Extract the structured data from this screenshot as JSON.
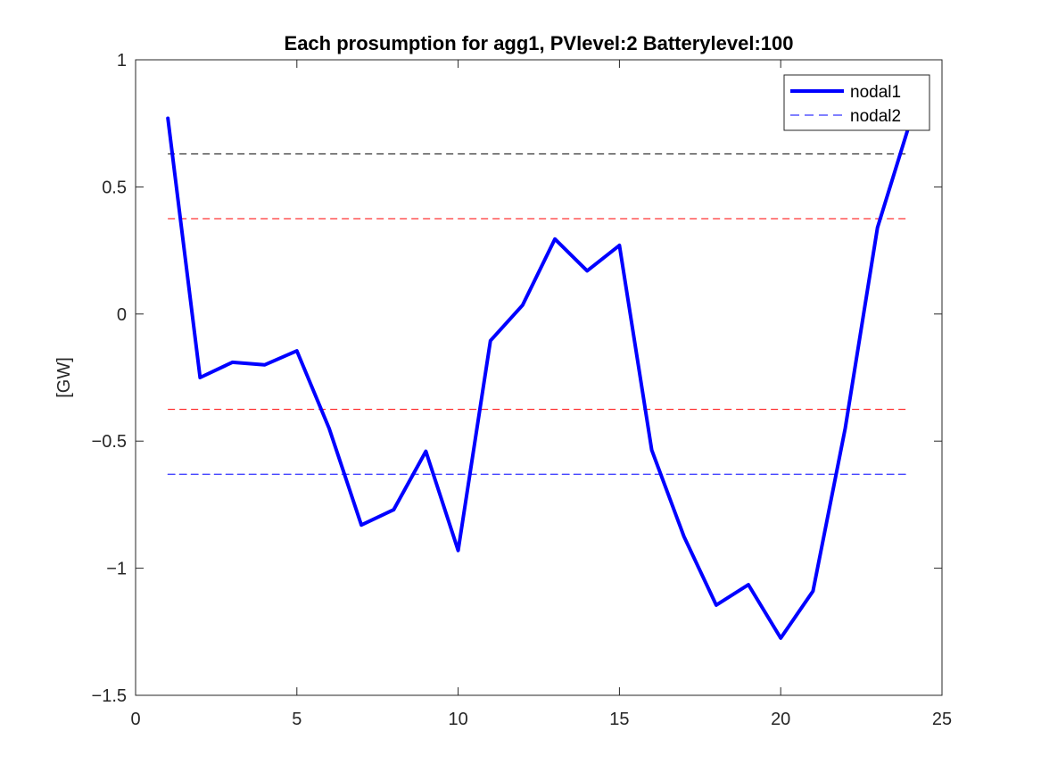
{
  "chart_data": {
    "type": "line",
    "title": "Each prosumption for agg1, PVlevel:2 Batterylevel:100",
    "xlabel": "",
    "ylabel": "[GW]",
    "xlim": [
      0,
      25
    ],
    "ylim": [
      -1.5,
      1
    ],
    "xticks": [
      0,
      5,
      10,
      15,
      20,
      25
    ],
    "xtick_labels": [
      "0",
      "5",
      "10",
      "15",
      "20",
      "25"
    ],
    "yticks": [
      1,
      0.5,
      0,
      -0.5,
      -1,
      -1.5
    ],
    "ytick_labels": [
      "1",
      "0.5",
      "0",
      "−0.5",
      "−1",
      "−1.5"
    ],
    "grid": false,
    "legend_position": "top-right",
    "series": [
      {
        "name": "nodal1",
        "style": "solid",
        "color": "#0000ff",
        "x": [
          1,
          2,
          3,
          4,
          5,
          6,
          7,
          8,
          9,
          10,
          11,
          12,
          13,
          14,
          15,
          16,
          17,
          18,
          19,
          20,
          21,
          22,
          23,
          24
        ],
        "y": [
          0.77,
          -0.25,
          -0.19,
          -0.2,
          -0.145,
          -0.45,
          -0.83,
          -0.77,
          -0.54,
          -0.93,
          -0.105,
          0.035,
          0.295,
          0.17,
          0.27,
          -0.535,
          -0.875,
          -1.145,
          -1.065,
          -1.275,
          -1.09,
          -0.45,
          0.34,
          0.75
        ]
      },
      {
        "name": "nodal2",
        "style": "dashed",
        "color": "#0000ff",
        "x": [
          1,
          24
        ],
        "y": [
          -0.63,
          -0.63
        ]
      }
    ],
    "reference_lines": [
      {
        "y": 0.63,
        "color": "#000000",
        "style": "dashed",
        "x_range": [
          1,
          24
        ]
      },
      {
        "y": 0.375,
        "color": "#ff0000",
        "style": "dashed",
        "x_range": [
          1,
          24
        ]
      },
      {
        "y": -0.375,
        "color": "#ff0000",
        "style": "dashed",
        "x_range": [
          1,
          24
        ]
      }
    ]
  }
}
